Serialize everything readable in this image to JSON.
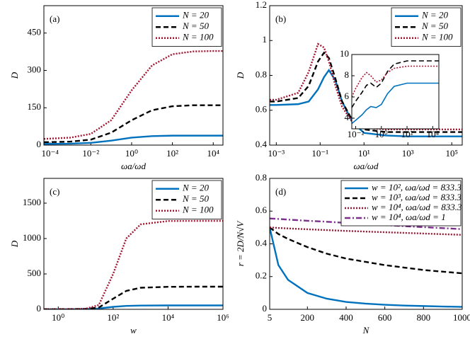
{
  "chart_data": [
    {
      "type": "line",
      "panel_label": "(a)",
      "xlabel": "ωa/ωd",
      "ylabel": "D",
      "xscale": "log",
      "legend": "upper right",
      "xlim": [
        5e-05,
        30000
      ],
      "xticks": [
        {
          "value": 0.0001,
          "label": "10⁻⁴"
        },
        {
          "value": 0.01,
          "label": "10⁻²"
        },
        {
          "value": 1,
          "label": "10⁰"
        },
        {
          "value": 100,
          "label": "10²"
        },
        {
          "value": 10000,
          "label": "10⁴"
        }
      ],
      "ylim": [
        0,
        560
      ],
      "yticks": [
        0,
        150,
        300,
        450
      ],
      "x": [
        5e-05,
        0.0001,
        0.001,
        0.01,
        0.1,
        1,
        10,
        100,
        1000,
        10000,
        30000
      ],
      "series": [
        {
          "name": "N = 20",
          "color": "#0072bd",
          "dash": "solid",
          "values": [
            5,
            5,
            6,
            9,
            18,
            30,
            36,
            38,
            38,
            38,
            38
          ]
        },
        {
          "name": "N = 50",
          "color": "#000000",
          "dash": "dashed",
          "values": [
            12,
            12,
            14,
            22,
            50,
            100,
            140,
            156,
            160,
            160,
            160
          ]
        },
        {
          "name": "N = 100",
          "color": "#a2142f",
          "dash": "dotted",
          "values": [
            25,
            26,
            30,
            45,
            100,
            220,
            320,
            365,
            376,
            378,
            378
          ]
        }
      ]
    },
    {
      "type": "line",
      "panel_label": "(b)",
      "xlabel": "ωa/ωd",
      "ylabel": "D",
      "xscale": "log",
      "legend": "upper right",
      "xlim": [
        0.0005,
        300000
      ],
      "xticks": [
        {
          "value": 0.001,
          "label": "10⁻³"
        },
        {
          "value": 0.1,
          "label": "10⁻¹"
        },
        {
          "value": 10,
          "label": "10¹"
        },
        {
          "value": 1000,
          "label": "10³"
        },
        {
          "value": 100000,
          "label": "10⁵"
        }
      ],
      "ylim": [
        0.4,
        1.2
      ],
      "yticks": [
        0.4,
        0.6,
        0.8,
        1,
        1.2
      ],
      "x": [
        0.0005,
        0.001,
        0.01,
        0.03,
        0.08,
        0.15,
        0.25,
        0.5,
        1,
        3,
        10,
        100,
        1000,
        100000,
        300000
      ],
      "series": [
        {
          "name": "N = 20",
          "color": "#0072bd",
          "dash": "solid",
          "values": [
            0.63,
            0.63,
            0.635,
            0.65,
            0.72,
            0.79,
            0.83,
            0.77,
            0.65,
            0.53,
            0.47,
            0.455,
            0.45,
            0.45,
            0.45
          ]
        },
        {
          "name": "N = 50",
          "color": "#000000",
          "dash": "dashed",
          "values": [
            0.65,
            0.65,
            0.67,
            0.74,
            0.88,
            0.93,
            0.9,
            0.78,
            0.65,
            0.54,
            0.49,
            0.475,
            0.475,
            0.475,
            0.475
          ]
        },
        {
          "name": "N = 100",
          "color": "#a2142f",
          "dash": "dotted",
          "values": [
            0.66,
            0.66,
            0.7,
            0.82,
            0.98,
            0.96,
            0.88,
            0.74,
            0.62,
            0.53,
            0.5,
            0.49,
            0.49,
            0.49,
            0.49
          ]
        }
      ]
    },
    {
      "type": "line",
      "panel_label": "(c)",
      "xlabel": "w",
      "ylabel": "D",
      "xscale": "log",
      "legend": "upper right",
      "xlim": [
        0.3,
        1000000
      ],
      "xticks": [
        {
          "value": 1,
          "label": "10⁰"
        },
        {
          "value": 100,
          "label": "10²"
        },
        {
          "value": 10000,
          "label": "10⁴"
        },
        {
          "value": 1000000,
          "label": "10⁶"
        }
      ],
      "ylim": [
        0,
        1850
      ],
      "yticks": [
        0,
        500,
        1000,
        1500
      ],
      "x": [
        0.3,
        1,
        3,
        10,
        30,
        100,
        300,
        1000,
        10000,
        100000,
        1000000
      ],
      "series": [
        {
          "name": "N = 20",
          "color": "#0072bd",
          "dash": "solid",
          "values": [
            1,
            1,
            2,
            4,
            12,
            35,
            48,
            53,
            55,
            55,
            55
          ]
        },
        {
          "name": "N = 50",
          "color": "#000000",
          "dash": "dashed",
          "values": [
            2,
            2,
            3,
            6,
            25,
            150,
            260,
            305,
            318,
            320,
            320
          ]
        },
        {
          "name": "N = 100",
          "color": "#a2142f",
          "dash": "dotted",
          "values": [
            2,
            2,
            3,
            8,
            60,
            500,
            1000,
            1200,
            1248,
            1250,
            1250
          ]
        }
      ]
    },
    {
      "type": "line",
      "panel_label": "(d)",
      "xlabel": "N",
      "ylabel": "r = 2D/N√V",
      "xscale": "linear",
      "legend": "upper right",
      "xlim": [
        5,
        1000
      ],
      "xticks": [
        5,
        200,
        400,
        600,
        800,
        1000
      ],
      "ylim": [
        0,
        0.8
      ],
      "yticks": [
        0,
        0.2,
        0.4,
        0.6,
        0.8
      ],
      "x": [
        5,
        50,
        100,
        200,
        300,
        400,
        500,
        600,
        700,
        800,
        900,
        1000
      ],
      "series": [
        {
          "name": "w = 10², ωa/ωd = 833.3",
          "color": "#0072bd",
          "dash": "solid",
          "values": [
            0.5,
            0.27,
            0.18,
            0.1,
            0.065,
            0.045,
            0.035,
            0.028,
            0.023,
            0.02,
            0.017,
            0.015
          ]
        },
        {
          "name": "w = 10³, ωa/ωd = 833.3",
          "color": "#000000",
          "dash": "dashed",
          "values": [
            0.5,
            0.46,
            0.43,
            0.38,
            0.34,
            0.31,
            0.29,
            0.27,
            0.255,
            0.24,
            0.23,
            0.22
          ]
        },
        {
          "name": "w = 10⁴, ωa/ωd = 833.3",
          "color": "#a2142f",
          "dash": "dotted",
          "values": [
            0.5,
            0.497,
            0.494,
            0.489,
            0.484,
            0.479,
            0.475,
            0.471,
            0.467,
            0.463,
            0.459,
            0.455
          ]
        },
        {
          "name": "w = 10⁴, ωa/ωd = 1",
          "color": "#7e2f8e",
          "dash": "dashdot",
          "values": [
            0.555,
            0.552,
            0.548,
            0.541,
            0.535,
            0.528,
            0.521,
            0.515,
            0.508,
            0.502,
            0.496,
            0.49
          ]
        }
      ]
    },
    {
      "type": "line",
      "xscale": "log",
      "xlim": [
        0.005,
        30000
      ],
      "xticks": [
        {
          "value": 0.01,
          "label": "10⁻²"
        },
        {
          "value": 1,
          "label": "10⁰"
        },
        {
          "value": 100,
          "label": "10²"
        },
        {
          "value": 10000,
          "label": "10⁴"
        }
      ],
      "ylim": [
        3,
        10
      ],
      "yticks": [
        4,
        6,
        8,
        10
      ],
      "x": [
        0.005,
        0.01,
        0.03,
        0.07,
        0.15,
        0.4,
        1,
        3,
        10,
        100,
        1000,
        30000
      ],
      "series": [
        {
          "color": "#0072bd",
          "dash": "solid",
          "values": [
            3.5,
            3.8,
            4.3,
            4.8,
            5.1,
            5.0,
            5.3,
            6.3,
            7.0,
            7.3,
            7.3,
            7.3
          ]
        },
        {
          "color": "#000000",
          "dash": "dashed",
          "values": [
            5.0,
            5.6,
            6.4,
            7.1,
            7.3,
            6.9,
            7.3,
            8.4,
            9.1,
            9.4,
            9.4,
            9.4
          ]
        },
        {
          "color": "#a2142f",
          "dash": "dotted",
          "values": [
            6.0,
            6.8,
            7.8,
            8.3,
            8.0,
            7.4,
            7.6,
            8.3,
            8.7,
            8.9,
            8.9,
            8.9
          ]
        }
      ]
    }
  ]
}
